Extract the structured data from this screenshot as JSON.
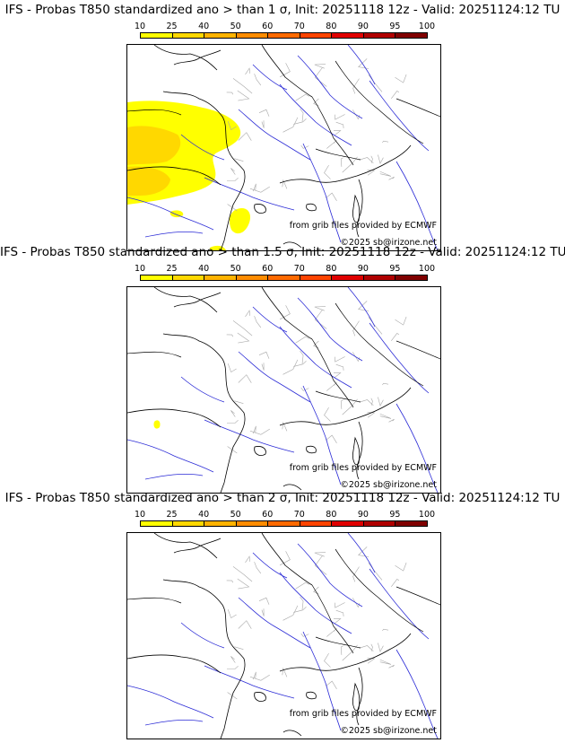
{
  "legend": {
    "labels": [
      "10",
      "25",
      "40",
      "50",
      "60",
      "70",
      "80",
      "90",
      "95",
      "100"
    ],
    "colors": [
      "#ffff00",
      "#ffd800",
      "#ffb300",
      "#ff8c00",
      "#ff6a00",
      "#ff4400",
      "#e00000",
      "#b00000",
      "#800000"
    ]
  },
  "panels": [
    {
      "title": "IFS - Probas T850  standardized ano > than 1 σ, Init: 20251118 12z - Valid: 20251124:12 TU",
      "credit_source": "from grib files provided by ECMWF",
      "credit_copyright": "©2025 sb@irizone.net",
      "variant": 1
    },
    {
      "title": "IFS - Probas T850  standardized ano > than 1.5 σ, Init: 20251118 12z - Valid: 20251124:12 TU",
      "credit_source": "from grib files provided by ECMWF",
      "credit_copyright": "©2025 sb@irizone.net",
      "variant": 2
    },
    {
      "title": "IFS - Probas T850  standardized ano > than 2 σ, Init: 20251118 12z - Valid: 20251124:12 TU",
      "credit_source": "from grib files provided by ECMWF",
      "credit_copyright": "©2025 sb@irizone.net",
      "variant": 3
    }
  ]
}
